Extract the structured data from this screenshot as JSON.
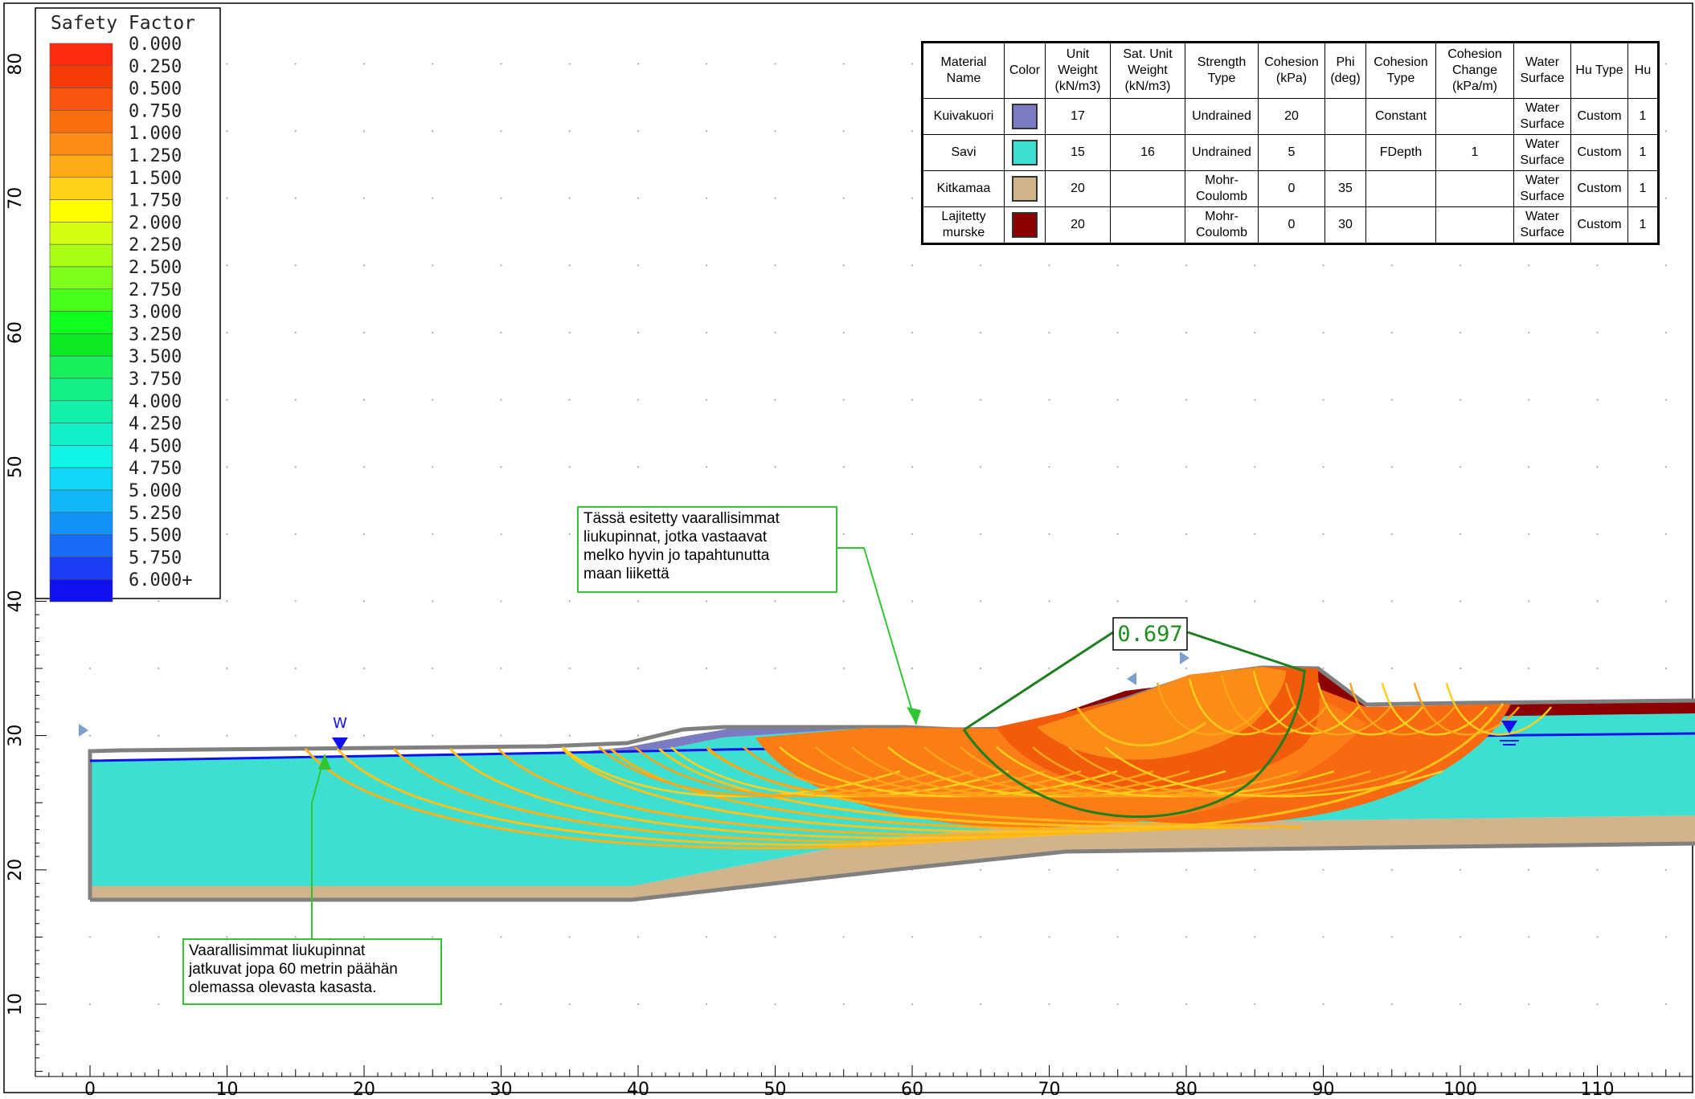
{
  "legend": {
    "title": "Safety Factor",
    "entries": [
      {
        "label": "0.000",
        "color": "#ff2a10"
      },
      {
        "label": "0.250",
        "color": "#f53c08"
      },
      {
        "label": "0.500",
        "color": "#f85510"
      },
      {
        "label": "0.750",
        "color": "#fa6e10"
      },
      {
        "label": "1.000",
        "color": "#fb8c18"
      },
      {
        "label": "1.250",
        "color": "#fdac18"
      },
      {
        "label": "1.500",
        "color": "#ffd21c"
      },
      {
        "label": "1.750",
        "color": "#ffff00"
      },
      {
        "label": "2.000",
        "color": "#d4ff12"
      },
      {
        "label": "2.250",
        "color": "#aaff15"
      },
      {
        "label": "2.500",
        "color": "#7eff1b"
      },
      {
        "label": "2.750",
        "color": "#48ff1b"
      },
      {
        "label": "3.000",
        "color": "#10ff1e"
      },
      {
        "label": "3.250",
        "color": "#0ce823"
      },
      {
        "label": "3.500",
        "color": "#18ef5a"
      },
      {
        "label": "3.750",
        "color": "#15ef87"
      },
      {
        "label": "4.000",
        "color": "#12f0a8"
      },
      {
        "label": "4.250",
        "color": "#12f0c8"
      },
      {
        "label": "4.500",
        "color": "#10f5e6"
      },
      {
        "label": "4.750",
        "color": "#10d8f6"
      },
      {
        "label": "5.000",
        "color": "#12b8f6"
      },
      {
        "label": "5.250",
        "color": "#1292f6"
      },
      {
        "label": "5.500",
        "color": "#1a6af6"
      },
      {
        "label": "5.750",
        "color": "#1a3cf3"
      },
      {
        "label": "6.000+",
        "color": "#1010ee"
      }
    ]
  },
  "axes": {
    "x_ticks": [
      "0",
      "10",
      "20",
      "30",
      "40",
      "50",
      "60",
      "70",
      "80",
      "90",
      "100",
      "110"
    ],
    "y_ticks": [
      "10",
      "20",
      "30",
      "40",
      "50",
      "60",
      "70",
      "80"
    ]
  },
  "table": {
    "headers": [
      "Material Name",
      "Color",
      "Unit Weight (kN/m3)",
      "Sat. Unit Weight (kN/m3)",
      "Strength Type",
      "Cohesion (kPa)",
      "Phi (deg)",
      "Cohesion Type",
      "Cohesion Change (kPa/m)",
      "Water Surface",
      "Hu Type",
      "Hu"
    ],
    "rows": [
      {
        "name": "Kuivakuori",
        "color": "#7b7bc3",
        "unit_weight": "17",
        "sat_weight": "",
        "strength": "Undrained",
        "cohesion": "20",
        "phi": "",
        "coh_type": "Constant",
        "coh_change": "",
        "water": "Water Surface",
        "hu_type": "Custom",
        "hu": "1"
      },
      {
        "name": "Savi",
        "color": "#3de0d0",
        "unit_weight": "15",
        "sat_weight": "16",
        "strength": "Undrained",
        "cohesion": "5",
        "phi": "",
        "coh_type": "FDepth",
        "coh_change": "1",
        "water": "Water Surface",
        "hu_type": "Custom",
        "hu": "1"
      },
      {
        "name": "Kitkamaa",
        "color": "#d2b48c",
        "unit_weight": "20",
        "sat_weight": "",
        "strength": "Mohr-Coulomb",
        "cohesion": "0",
        "phi": "35",
        "coh_type": "",
        "coh_change": "",
        "water": "Water Surface",
        "hu_type": "Custom",
        "hu": "1"
      },
      {
        "name": "Lajitetty murske",
        "color": "#8b0000",
        "unit_weight": "20",
        "sat_weight": "",
        "strength": "Mohr-Coulomb",
        "cohesion": "0",
        "phi": "30",
        "coh_type": "",
        "coh_change": "",
        "water": "Water Surface",
        "hu_type": "Custom",
        "hu": "1"
      }
    ]
  },
  "critical_sf": "0.697",
  "water_marker": "W",
  "annotations": {
    "upper": "Tässä esitetty vaarallisimmat\nliukupinnat, jotka vastaavat\nmelko hyvin jo tapahtunutta\nmaan liikettä",
    "lower": "Vaarallisimmat liukupinnat\njatkuvat jopa 60 metrin päähän\nolemassa olevasta kasasta."
  },
  "colors": {
    "clay": "#3de0d0",
    "sand": "#d2b48c",
    "crust": "#7b7bc3",
    "gravel": "#8b0000",
    "water_line": "#1010ee",
    "critical": "#1e7f1e",
    "callout": "#31c631",
    "boundary": "#808080"
  }
}
